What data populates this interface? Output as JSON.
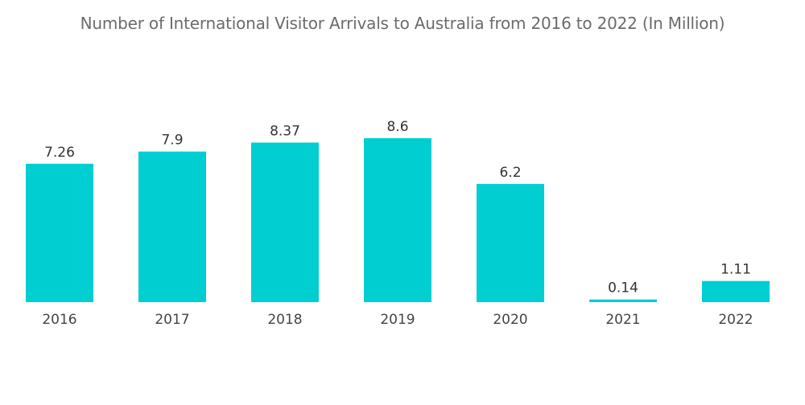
{
  "chart_data": {
    "type": "bar",
    "title": "Number of International Visitor Arrivals to Australia from 2016 to 2022 (In Million)",
    "categories": [
      "2016",
      "2017",
      "2018",
      "2019",
      "2020",
      "2021",
      "2022"
    ],
    "values": [
      7.26,
      7.9,
      8.37,
      8.6,
      6.2,
      0.14,
      1.11
    ],
    "data_labels": [
      "7.26",
      "7.9",
      "8.37",
      "8.6",
      "6.2",
      "0.14",
      "1.11"
    ],
    "xlabel": "",
    "ylabel": "",
    "ylim": [
      0,
      8.6
    ],
    "grid": false,
    "legend": "none",
    "bar_color": "#00CED1"
  }
}
